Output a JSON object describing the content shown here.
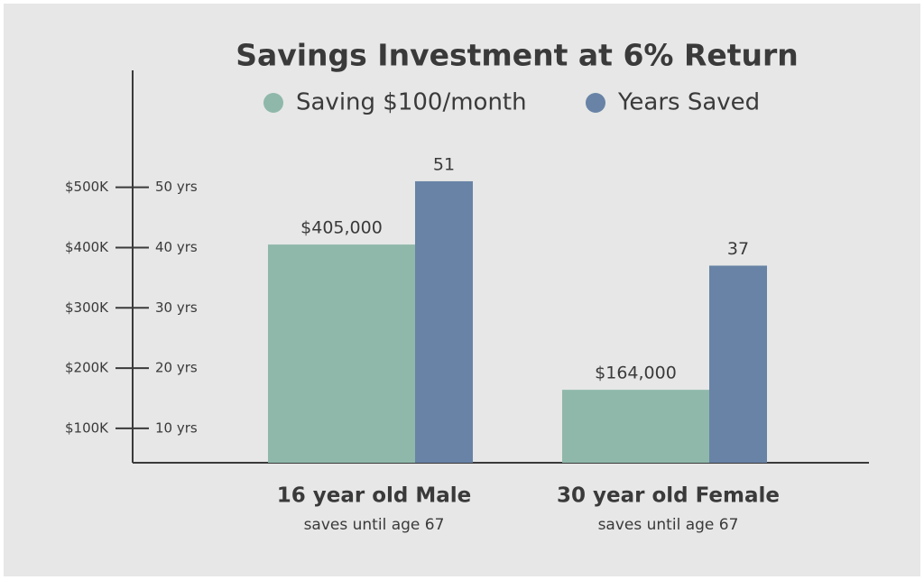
{
  "chart_data": {
    "type": "bar",
    "title": "Savings Investment at 6% Return",
    "categories": [
      "16 year old Male",
      "30 year old Female"
    ],
    "category_notes": [
      "saves until age 67",
      "saves until age 67"
    ],
    "series": [
      {
        "name": "Saving $100/month",
        "color": "#8fb8aa",
        "values": [
          405000,
          164000
        ],
        "value_labels": [
          "$405,000",
          "$164,000"
        ]
      },
      {
        "name": "Years Saved",
        "color": "#6883a6",
        "values": [
          51,
          37
        ],
        "axis": "y2"
      }
    ],
    "ylim": [
      43000,
      694000
    ],
    "yticks": [
      {
        "value": 100000,
        "label": "$100K"
      },
      {
        "value": 200000,
        "label": "$200K"
      },
      {
        "value": 300000,
        "label": "$300K"
      },
      {
        "value": 400000,
        "label": "$400K"
      },
      {
        "value": 500000,
        "label": "$500K"
      }
    ],
    "y2lim": [
      4.3,
      69.4
    ],
    "y2ticks": [
      {
        "value": 10,
        "label": "10 yrs"
      },
      {
        "value": 20,
        "label": "20 yrs"
      },
      {
        "value": 30,
        "label": "30 yrs"
      },
      {
        "value": 40,
        "label": "40 yrs"
      },
      {
        "value": 50,
        "label": "50 yrs"
      }
    ]
  }
}
